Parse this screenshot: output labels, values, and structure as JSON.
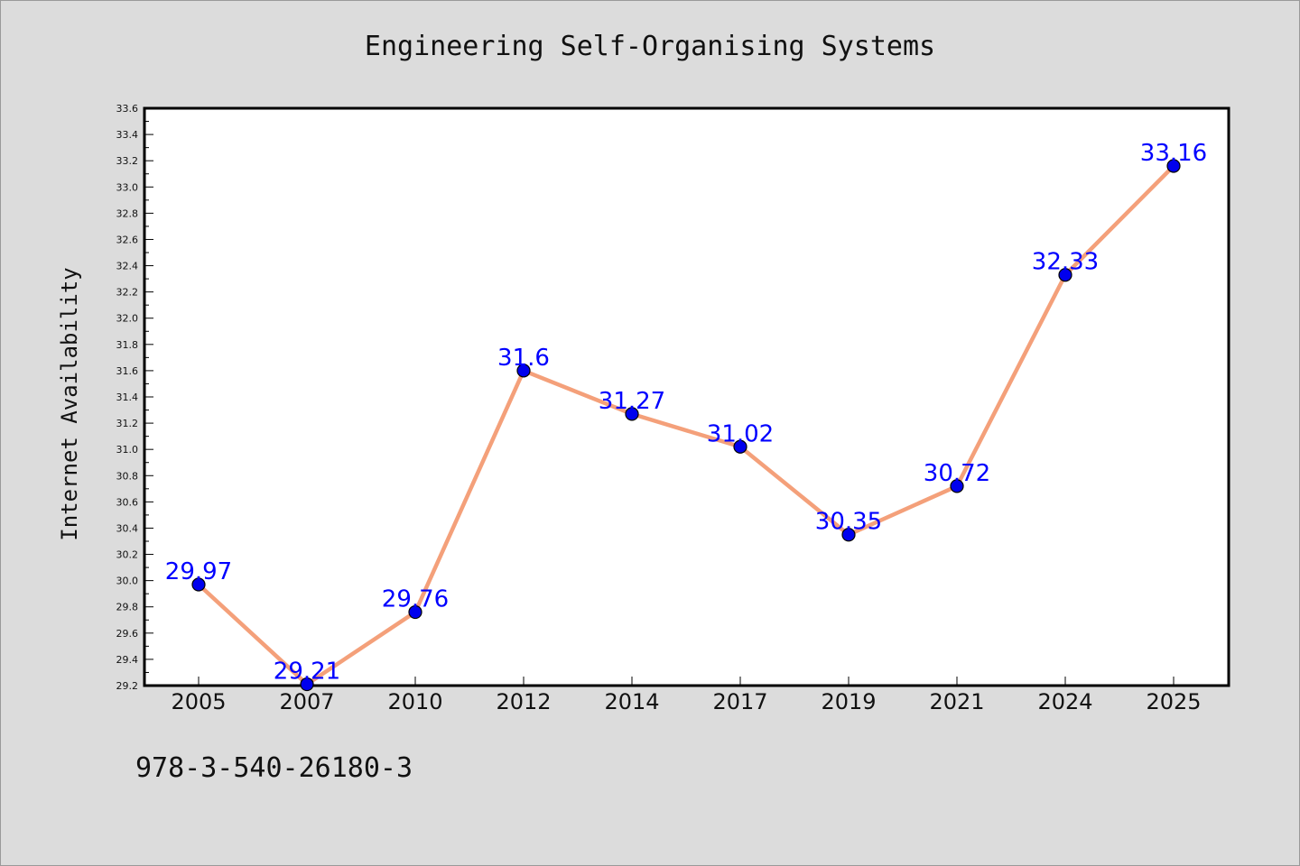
{
  "chart_data": {
    "type": "line",
    "title": "Engineering Self-Organising Systems",
    "xlabel": "",
    "ylabel": "Internet Availability",
    "categories": [
      "2005",
      "2007",
      "2010",
      "2012",
      "2014",
      "2017",
      "2019",
      "2021",
      "2024",
      "2025"
    ],
    "series": [
      {
        "values": [
          29.97,
          29.21,
          29.76,
          31.6,
          31.27,
          31.02,
          30.35,
          30.72,
          32.33,
          33.16
        ],
        "data_labels": [
          "29.97",
          "29.21",
          "29.76",
          "31.6",
          "31.27",
          "31.02",
          "30.35",
          "30.72",
          "32.33",
          "33.16"
        ],
        "line_color": "#f4a07a",
        "marker_color": "#0000ee",
        "label_color": "#0000ff"
      }
    ],
    "ylim": [
      29.2,
      33.6
    ],
    "yticks": [
      "29.2",
      "29.4",
      "29.6",
      "29.8",
      "30.0",
      "30.2",
      "30.4",
      "30.6",
      "30.8",
      "31.0",
      "31.2",
      "31.4",
      "31.6",
      "31.8",
      "32.0",
      "32.2",
      "32.4",
      "32.6",
      "32.8",
      "33.0",
      "33.2",
      "33.4",
      "33.6"
    ],
    "grid": false,
    "legend": "none"
  },
  "footer_text": "978-3-540-26180-3"
}
